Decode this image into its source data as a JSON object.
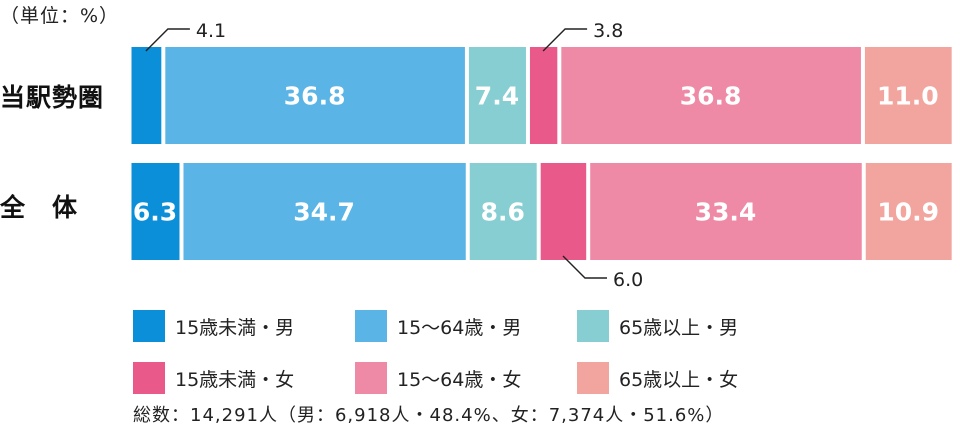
{
  "chart_data": {
    "type": "bar",
    "stacked": true,
    "orientation": "horizontal",
    "unit_label": "（単位：%）",
    "categories": [
      "当駅勢圏",
      "全　体"
    ],
    "series": [
      {
        "name": "15歳未満・男",
        "color": "#0b8fd8",
        "values": [
          4.1,
          6.3
        ]
      },
      {
        "name": "15〜64歳・男",
        "color": "#5ab4e5",
        "values": [
          36.8,
          34.7
        ]
      },
      {
        "name": "65歳以上・男",
        "color": "#86ced2",
        "values": [
          7.4,
          8.6
        ]
      },
      {
        "name": "15歳未満・女",
        "color": "#e95a8a",
        "values": [
          3.8,
          6.0
        ]
      },
      {
        "name": "15〜64歳・女",
        "color": "#ee8aa6",
        "values": [
          36.8,
          33.4
        ]
      },
      {
        "name": "65歳以上・女",
        "color": "#f2a59e",
        "values": [
          11.0,
          10.9
        ]
      }
    ],
    "value_labels": [
      [
        "4.1",
        "36.8",
        "7.4",
        "3.8",
        "36.8",
        "11.0"
      ],
      [
        "6.3",
        "34.7",
        "8.6",
        "6.0",
        "33.4",
        "10.9"
      ]
    ],
    "xlim": [
      0,
      100
    ],
    "grid": false,
    "legend_position": "bottom",
    "footnote": "総数：14,291人（男：6,918人・48.4%、女：7,374人・51.6%）"
  }
}
